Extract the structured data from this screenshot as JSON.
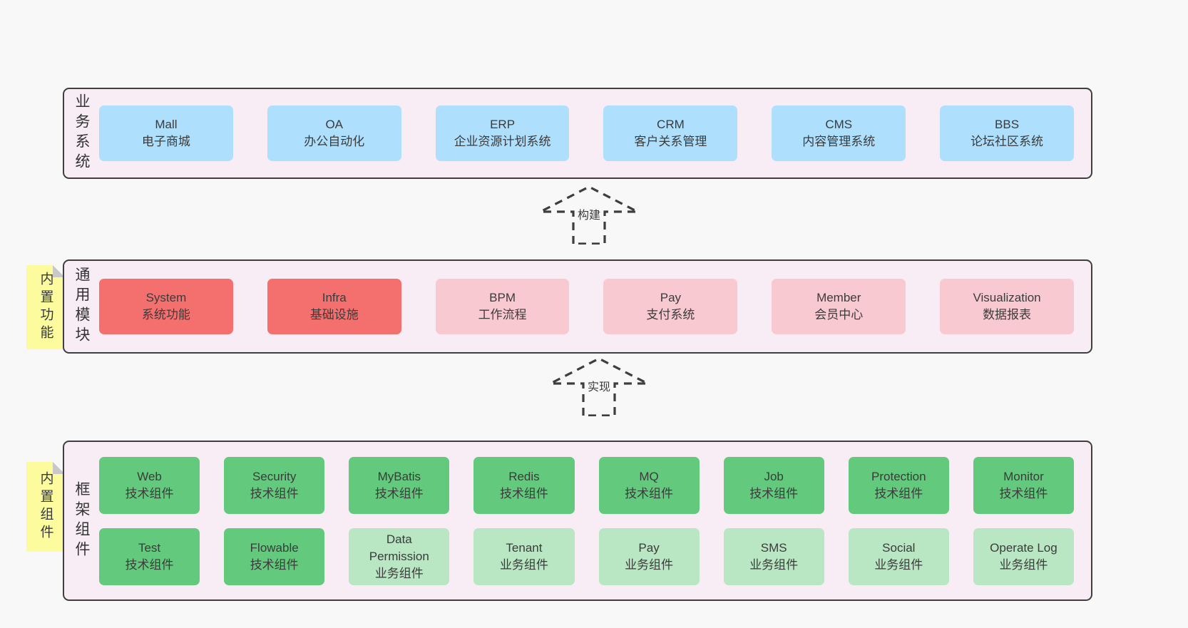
{
  "colors": {
    "page_bg": "#f8f8f8",
    "band_bg": "#f8ecf5",
    "band_border": "#3f3f3f",
    "box_blue": "#aedffc",
    "box_red": "#f4706f",
    "box_pink": "#f9c9d2",
    "box_green": "#63c97d",
    "box_light_green": "#b9e6c3",
    "sticky_yellow": "#fcfc9f",
    "fold_gray": "#c8c8c8",
    "text": "#3b3b3b"
  },
  "sections": {
    "business": {
      "label": "业务系统",
      "boxes": [
        {
          "name": "Mall",
          "desc": "电子商城",
          "variant": "blue"
        },
        {
          "name": "OA",
          "desc": "办公自动化",
          "variant": "blue"
        },
        {
          "name": "ERP",
          "desc": "企业资源计划系统",
          "variant": "blue"
        },
        {
          "name": "CRM",
          "desc": "客户关系管理",
          "variant": "blue"
        },
        {
          "name": "CMS",
          "desc": "内容管理系统",
          "variant": "blue"
        },
        {
          "name": "BBS",
          "desc": "论坛社区系统",
          "variant": "blue"
        }
      ]
    },
    "modules": {
      "label": "通用模块",
      "sticky": "内置功能",
      "boxes": [
        {
          "name": "System",
          "desc": "系统功能",
          "variant": "red"
        },
        {
          "name": "Infra",
          "desc": "基础设施",
          "variant": "red"
        },
        {
          "name": "BPM",
          "desc": "工作流程",
          "variant": "pink"
        },
        {
          "name": "Pay",
          "desc": "支付系统",
          "variant": "pink"
        },
        {
          "name": "Member",
          "desc": "会员中心",
          "variant": "pink"
        },
        {
          "name": "Visualization",
          "desc": "数据报表",
          "variant": "pink"
        }
      ]
    },
    "components": {
      "label": "框架组件",
      "sticky": "内置组件",
      "boxes": [
        {
          "name": "Web",
          "desc": "技术组件",
          "variant": "green"
        },
        {
          "name": "Security",
          "desc": "技术组件",
          "variant": "green"
        },
        {
          "name": "MyBatis",
          "desc": "技术组件",
          "variant": "green"
        },
        {
          "name": "Redis",
          "desc": "技术组件",
          "variant": "green"
        },
        {
          "name": "MQ",
          "desc": "技术组件",
          "variant": "green"
        },
        {
          "name": "Job",
          "desc": "技术组件",
          "variant": "green"
        },
        {
          "name": "Protection",
          "desc": "技术组件",
          "variant": "green"
        },
        {
          "name": "Monitor",
          "desc": "技术组件",
          "variant": "green"
        },
        {
          "name": "Test",
          "desc": "技术组件",
          "variant": "green"
        },
        {
          "name": "Flowable",
          "desc": "技术组件",
          "variant": "green"
        },
        {
          "name": "Data Permission",
          "desc": "业务组件",
          "variant": "light_green"
        },
        {
          "name": "Tenant",
          "desc": "业务组件",
          "variant": "light_green"
        },
        {
          "name": "Pay",
          "desc": "业务组件",
          "variant": "light_green"
        },
        {
          "name": "SMS",
          "desc": "业务组件",
          "variant": "light_green"
        },
        {
          "name": "Social",
          "desc": "业务组件",
          "variant": "light_green"
        },
        {
          "name": "Operate Log",
          "desc": "业务组件",
          "variant": "light_green"
        }
      ]
    }
  },
  "arrows": [
    {
      "label": "构建"
    },
    {
      "label": "实现"
    }
  ]
}
